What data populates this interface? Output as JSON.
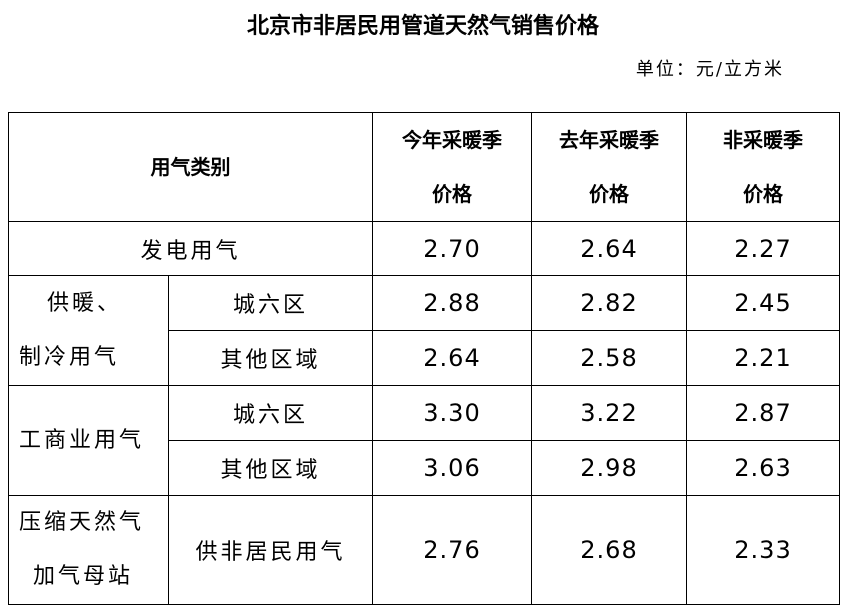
{
  "title": "北京市非居民用管道天然气销售价格",
  "unit": "单位：元/立方米",
  "header": {
    "category": "用气类别",
    "col1": [
      "今年采暖季",
      "价格"
    ],
    "col2": [
      "去年采暖季",
      "价格"
    ],
    "col3": [
      "非采暖季",
      "价格"
    ]
  },
  "rows": {
    "power": {
      "label": "发电用气",
      "values": [
        "2.70",
        "2.64",
        "2.27"
      ]
    },
    "heating": {
      "group": [
        "供暖、",
        "制冷用气"
      ],
      "sub": [
        {
          "label": "城六区",
          "values": [
            "2.88",
            "2.82",
            "2.45"
          ]
        },
        {
          "label": "其他区域",
          "values": [
            "2.64",
            "2.58",
            "2.21"
          ]
        }
      ]
    },
    "commercial": {
      "group": [
        "工商业用气"
      ],
      "sub": [
        {
          "label": "城六区",
          "values": [
            "3.30",
            "3.22",
            "2.87"
          ]
        },
        {
          "label": "其他区域",
          "values": [
            "3.06",
            "2.98",
            "2.63"
          ]
        }
      ]
    },
    "cng": {
      "group": [
        "压缩天然气",
        "加气母站"
      ],
      "label": "供非居民用气",
      "values": [
        "2.76",
        "2.68",
        "2.33"
      ]
    }
  }
}
